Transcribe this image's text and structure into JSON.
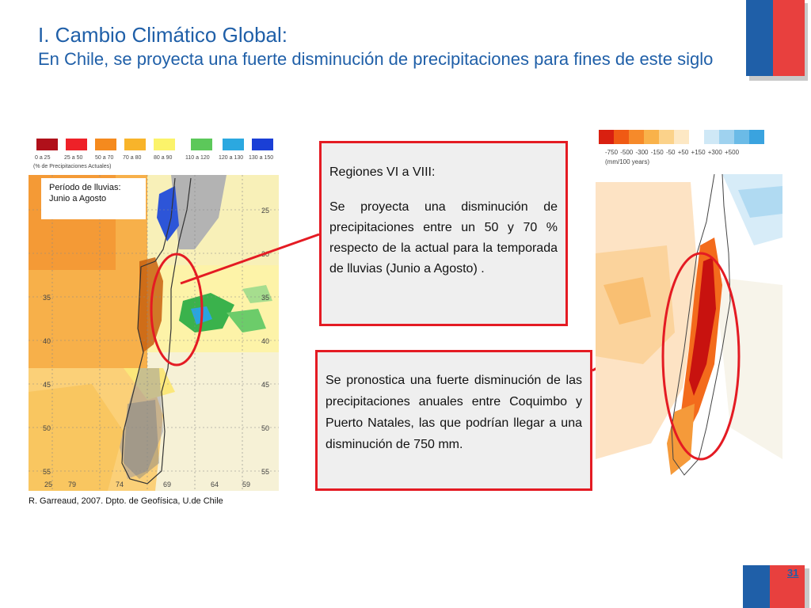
{
  "title": {
    "line1": "I. Cambio Climático Global:",
    "line2": "En Chile, se proyecta una fuerte disminución de precipitaciones para fines de este siglo"
  },
  "left_map": {
    "legend_ticks": [
      "0 a 25",
      "25 a 50",
      "50 a 70",
      "70 a 80",
      "80 a 90",
      "110 a 120",
      "120 a 130",
      "130 a 150"
    ],
    "legend_colors": [
      "#b0101a",
      "#ee2128",
      "#f58a1e",
      "#f8b42a",
      "#fbf36a",
      "#5cc85a",
      "#2ba8e0",
      "#1a3fd6"
    ],
    "legend_unit": "(% de Precipitaciones Actuales)",
    "period_label_line1": "Período de lluvias:",
    "period_label_line2": "Junio a Agosto",
    "lat_labels": [
      "25",
      "30",
      "35",
      "40",
      "45",
      "50",
      "55"
    ],
    "lat_labels_right": [
      "25",
      "30",
      "35",
      "40",
      "45",
      "50",
      "55"
    ],
    "lon_labels": [
      "79",
      "74",
      "69",
      "64",
      "59"
    ],
    "credit": "R. Garreaud, 2007. Dpto. de Geofísica, U.de Chile"
  },
  "box_a": {
    "heading": "Regiones VI a VIII:",
    "body": "Se proyecta una disminución de precipitaciones entre un 50 y 70 % respecto de la actual para la temporada de lluvias (Junio a Agosto) ."
  },
  "box_b": {
    "body": "Se pronostica una fuerte disminución de las precipitaciones anuales entre Coquimbo y Puerto Natales, las que podrían llegar a una disminución de 750 mm."
  },
  "right_map": {
    "legend_colors": [
      "#d92010",
      "#f05a14",
      "#f68a2a",
      "#f9b24a",
      "#fbd28a",
      "#fde8c4",
      "#ffffff",
      "#cfe8f6",
      "#9fd2ef",
      "#6bbbe7",
      "#3aa3df"
    ],
    "legend_ticks": "-750 -500 -300  -150  -50   +50  +150 +300 +500",
    "legend_unit": "(mm/100 years)"
  },
  "page_number": "31",
  "colors": {
    "title_blue": "#1f5fa8",
    "highlight_red": "#e41b23",
    "flag_red": "#e8403e"
  }
}
